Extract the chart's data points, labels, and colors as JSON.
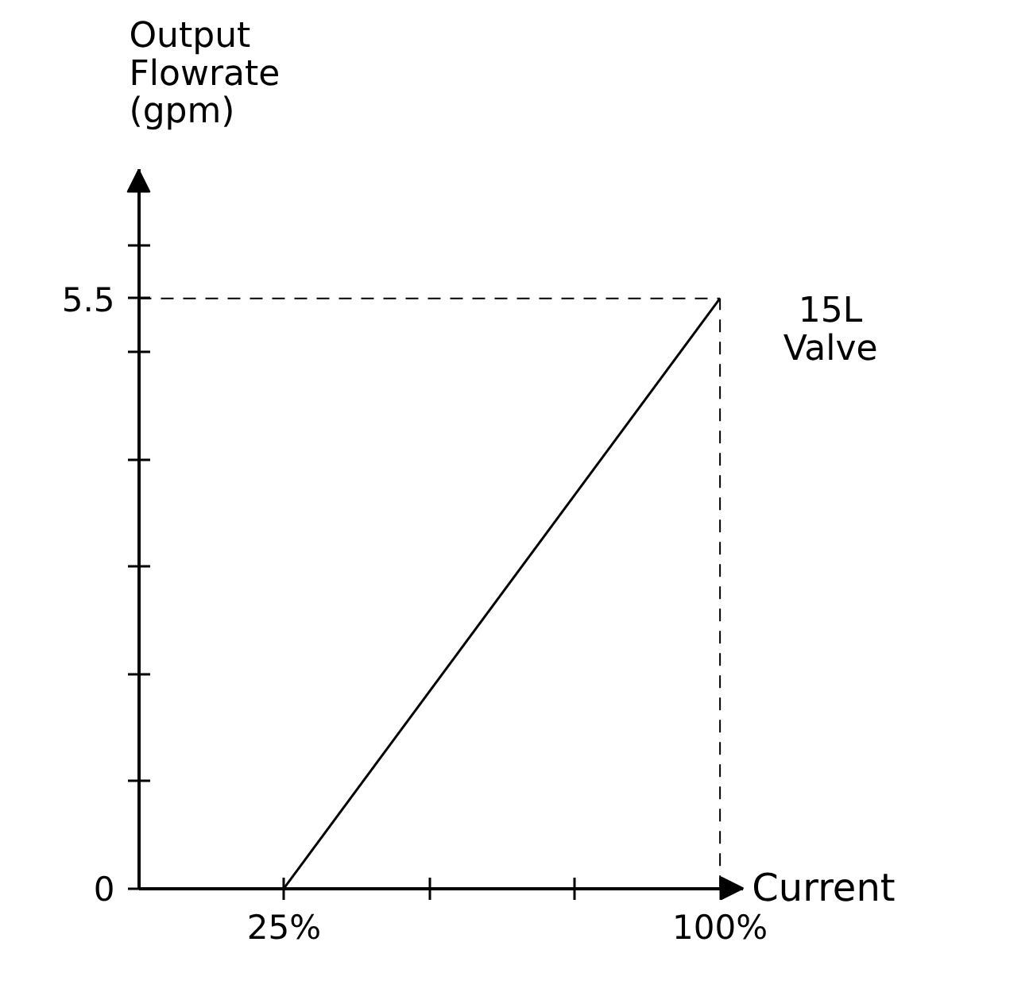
{
  "chart_data": {
    "type": "line",
    "xlabel": "Current",
    "ylabel": "Output\nFlowrate\n(gpm)",
    "x": [
      25,
      100
    ],
    "series": [
      {
        "color": "#000000",
        "values": [
          0,
          5.5
        ]
      }
    ],
    "xlim": [
      0,
      104
    ],
    "ylim": [
      0,
      6.7
    ],
    "xticks": [
      {
        "value": 25,
        "label": "25%"
      },
      {
        "value": 50,
        "label": null
      },
      {
        "value": 75,
        "label": null
      },
      {
        "value": 100,
        "label": "100%"
      }
    ],
    "yticks": [
      {
        "value": 0,
        "label": "0"
      },
      {
        "value": 1,
        "label": null
      },
      {
        "value": 2,
        "label": null
      },
      {
        "value": 3,
        "label": null
      },
      {
        "value": 4,
        "label": null
      },
      {
        "value": 5,
        "label": null
      },
      {
        "value": 5.5,
        "label": "5.5"
      },
      {
        "value": 6,
        "label": null
      }
    ],
    "ref_lines": [
      {
        "axis": "y",
        "value": 5.5,
        "line_style": "dashed",
        "color": "#000000"
      },
      {
        "axis": "x",
        "value": 100,
        "line_style": "dashed",
        "color": "#000000"
      }
    ],
    "annotations": [
      "15L\nValve"
    ],
    "grid": false,
    "line_style": "solid",
    "marker": "none"
  }
}
